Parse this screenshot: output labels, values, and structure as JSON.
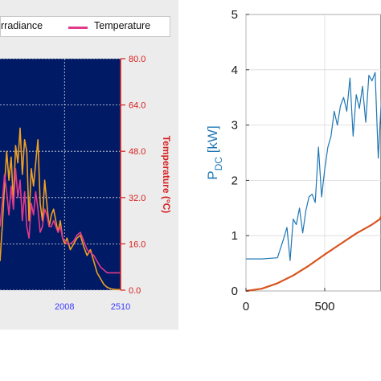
{
  "legend": {
    "irradiance_label": "rradiance",
    "temperature_label": "Temperature"
  },
  "colors": {
    "irradiance": "#f0a020",
    "temperature": "#e23a8a",
    "plot_bg": "#001a66",
    "pdc": "#1f77b4",
    "curve": "#d9541e",
    "left_axis": "#d62020",
    "left_xtick": "#3a3aff"
  },
  "chart_data": [
    {
      "type": "line",
      "title": "",
      "series": [
        {
          "name": "rradiance",
          "x": [
            1430,
            1450,
            1470,
            1490,
            1510,
            1530,
            1550,
            1570,
            1590,
            1610,
            1630,
            1650,
            1670,
            1690,
            1710,
            1730,
            1750,
            1770,
            1790,
            1810,
            1830,
            1850,
            1870,
            1890,
            1910,
            1930,
            1950,
            1970,
            1990,
            2010,
            2030,
            2060,
            2090,
            2120,
            2150,
            2180,
            2210,
            2240,
            2270,
            2300,
            2330,
            2360,
            2390,
            2420,
            2450,
            2480,
            2510
          ],
          "y": [
            10,
            22,
            36,
            48,
            38,
            46,
            30,
            50,
            44,
            56,
            40,
            52,
            48,
            24,
            42,
            36,
            44,
            52,
            30,
            24,
            38,
            30,
            22,
            26,
            28,
            24,
            20,
            24,
            18,
            16,
            18,
            14,
            16,
            18,
            19,
            15,
            12,
            14,
            10,
            6,
            4,
            2,
            1,
            0.5,
            0.3,
            0.2,
            0.2
          ]
        },
        {
          "name": "Temperature",
          "x": [
            1430,
            1450,
            1470,
            1490,
            1510,
            1530,
            1550,
            1570,
            1590,
            1610,
            1630,
            1650,
            1670,
            1690,
            1710,
            1730,
            1750,
            1770,
            1790,
            1810,
            1830,
            1850,
            1870,
            1890,
            1910,
            1930,
            1950,
            1970,
            1990,
            2010,
            2030,
            2060,
            2090,
            2120,
            2150,
            2180,
            2210,
            2240,
            2270,
            2300,
            2330,
            2360,
            2390,
            2420,
            2450,
            2480,
            2510
          ],
          "y": [
            22,
            30,
            40,
            34,
            26,
            36,
            28,
            42,
            32,
            38,
            24,
            34,
            22,
            18,
            30,
            26,
            34,
            28,
            20,
            22,
            28,
            26,
            22,
            22,
            24,
            22,
            20,
            22,
            18,
            17,
            16,
            16,
            17,
            19,
            20,
            17,
            14,
            13,
            12,
            10,
            8,
            7,
            6,
            6,
            6,
            6,
            6
          ]
        }
      ],
      "ylabel": "Temperature (°C)",
      "y_ticks": [
        "0.0",
        "16.0",
        "32.0",
        "48.0",
        "64.0",
        "80.0"
      ],
      "x_ticks": [
        "2008",
        "2510"
      ],
      "ylim": [
        0,
        80
      ],
      "grid": true,
      "legend_position": "top"
    },
    {
      "type": "line",
      "title": "",
      "series": [
        {
          "name": "P_DC",
          "x": [
            0,
            100,
            200,
            240,
            260,
            280,
            300,
            320,
            340,
            360,
            380,
            400,
            420,
            440,
            460,
            480,
            500,
            520,
            540,
            560,
            580,
            600,
            620,
            640,
            660,
            680,
            700,
            720,
            740,
            760,
            780,
            800,
            820,
            840,
            860,
            870
          ],
          "y": [
            0.58,
            0.58,
            0.6,
            0.95,
            1.15,
            0.55,
            1.3,
            1.2,
            1.5,
            1.05,
            1.45,
            1.7,
            1.75,
            1.6,
            2.6,
            1.7,
            2.2,
            2.6,
            2.8,
            3.25,
            3.0,
            3.35,
            3.5,
            3.25,
            3.85,
            2.8,
            3.55,
            3.3,
            3.7,
            3.05,
            3.9,
            3.8,
            3.95,
            2.4,
            3.5,
            3.7
          ]
        },
        {
          "name": "",
          "x": [
            0,
            100,
            200,
            300,
            400,
            500,
            600,
            700,
            800,
            850,
            870
          ],
          "y": [
            0.0,
            0.04,
            0.14,
            0.28,
            0.46,
            0.66,
            0.85,
            1.04,
            1.2,
            1.3,
            1.42
          ]
        }
      ],
      "ylabel": "P_DC [kW]",
      "y_ticks": [
        "0",
        "1",
        "2",
        "3",
        "4",
        "5"
      ],
      "x_ticks": [
        "0",
        "500"
      ],
      "ylim": [
        0,
        5
      ],
      "grid": true
    }
  ]
}
